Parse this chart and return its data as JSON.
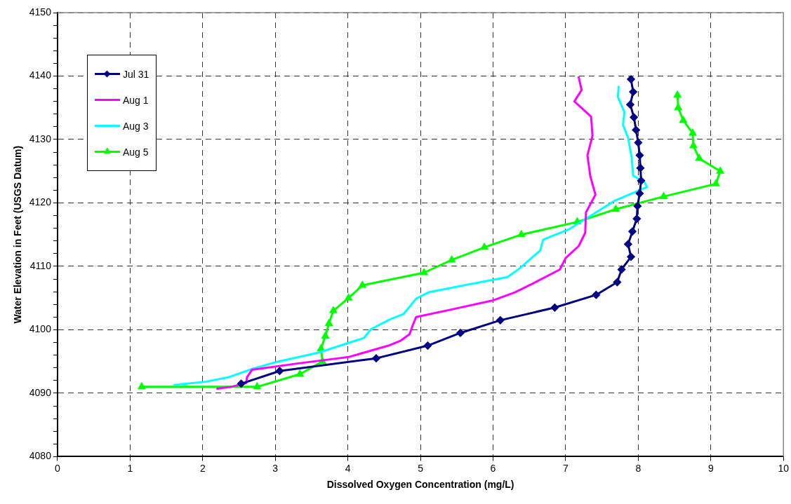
{
  "chart_data": {
    "type": "line",
    "xlabel": "Dissolved Oxygen Concentration (mg/L)",
    "ylabel": "Water Elevation in Feet (USGS Datum)",
    "xlim": [
      0,
      10
    ],
    "xticks": [
      0,
      1,
      2,
      3,
      4,
      5,
      6,
      7,
      8,
      9,
      10
    ],
    "ylim": [
      4080,
      4150
    ],
    "yticks": [
      4080,
      {
        "value": 4082,
        "label": null
      },
      {
        "value": 4084,
        "label": null
      },
      {
        "value": 4086,
        "label": null
      },
      {
        "value": 4088,
        "label": null
      },
      4090,
      {
        "value": 4092,
        "label": null
      },
      {
        "value": 4094,
        "label": null
      },
      {
        "value": 4096,
        "label": null
      },
      {
        "value": 4098,
        "label": null
      },
      4100,
      {
        "value": 4102,
        "label": null
      },
      {
        "value": 4104,
        "label": null
      },
      {
        "value": 4106,
        "label": null
      },
      {
        "value": 4108,
        "label": null
      },
      4110,
      {
        "value": 4112,
        "label": null
      },
      {
        "value": 4114,
        "label": null
      },
      {
        "value": 4116,
        "label": null
      },
      {
        "value": 4118,
        "label": null
      },
      4120,
      {
        "value": 4122,
        "label": null
      },
      {
        "value": 4124,
        "label": null
      },
      {
        "value": 4126,
        "label": null
      },
      {
        "value": 4128,
        "label": null
      },
      4130,
      {
        "value": 4132,
        "label": null
      },
      {
        "value": 4134,
        "label": null
      },
      {
        "value": 4136,
        "label": null
      },
      {
        "value": 4138,
        "label": null
      },
      4140,
      {
        "value": 4142,
        "label": null
      },
      {
        "value": 4144,
        "label": null
      },
      {
        "value": 4146,
        "label": null
      },
      {
        "value": 4148,
        "label": null
      },
      4150
    ],
    "grid": true,
    "legend": "top left",
    "line_style": "solid",
    "series": [
      {
        "name": "Jul 31",
        "color": "#000080",
        "marker": "diamond",
        "x": [
          2.53,
          3.06,
          4.39,
          5.1,
          5.55,
          6.1,
          6.85,
          7.42,
          7.71,
          7.77,
          7.9,
          7.86,
          7.92,
          7.98,
          7.99,
          8.02,
          8.04,
          8.03,
          8.02,
          8.0,
          7.97,
          7.94,
          7.89,
          7.93,
          7.9
        ],
        "values": [
          4091.5,
          4093.5,
          4095.5,
          4097.5,
          4099.5,
          4101.5,
          4103.5,
          4105.5,
          4107.5,
          4109.5,
          4111.5,
          4113.5,
          4115.5,
          4117.5,
          4119.5,
          4121.5,
          4123.5,
          4125.5,
          4127.5,
          4129.5,
          4131.5,
          4133.5,
          4135.5,
          4137.5,
          4139.5
        ]
      },
      {
        "name": "Aug 1",
        "color": "#ff00ff",
        "marker": "none",
        "x": [
          2.2,
          2.39,
          2.6,
          2.61,
          2.68,
          3.32,
          4.01,
          4.56,
          4.73,
          4.85,
          4.89,
          4.94,
          5.39,
          5.99,
          6.3,
          6.55,
          6.92,
          7.0,
          7.18,
          7.27,
          7.28,
          7.41,
          7.34,
          7.3,
          7.37,
          7.35,
          7.12,
          7.22,
          7.18
        ],
        "values": [
          4090.7,
          4091.0,
          4091.6,
          4092.5,
          4093.7,
          4094.7,
          4095.7,
          4097.5,
          4098.3,
          4099.3,
          4100.6,
          4102.0,
          4103.1,
          4104.6,
          4105.9,
          4107.3,
          4109.5,
          4111.3,
          4113.2,
          4115.3,
          4118.5,
          4121.3,
          4124.2,
          4127.5,
          4130.6,
          4133.6,
          4136.0,
          4137.8,
          4139.8
        ]
      },
      {
        "name": "Aug 3",
        "color": "#00ffff",
        "marker": "none",
        "x": [
          1.61,
          2.04,
          2.35,
          2.7,
          3.01,
          3.6,
          4.22,
          4.32,
          4.59,
          4.77,
          4.94,
          5.11,
          5.64,
          6.2,
          6.37,
          6.65,
          6.69,
          7.04,
          7.67,
          8.12,
          8.09,
          7.93,
          7.91,
          7.86,
          7.79,
          7.81,
          7.72,
          7.73
        ],
        "values": [
          4091.3,
          4091.8,
          4092.5,
          4093.9,
          4094.9,
          4096.4,
          4098.7,
          4100.1,
          4101.7,
          4102.5,
          4104.9,
          4105.9,
          4107.1,
          4108.3,
          4109.7,
          4112.5,
          4114.2,
          4115.8,
          4120.3,
          4122.5,
          4123.2,
          4124.3,
          4127.1,
          4130.3,
          4132.3,
          4134.3,
          4136.7,
          4138.3
        ]
      },
      {
        "name": "Aug 5",
        "color": "#00ff00",
        "marker": "triangle",
        "x": [
          1.16,
          2.75,
          3.34,
          3.65,
          3.63,
          3.69,
          3.74,
          3.8,
          4.01,
          4.2,
          5.05,
          5.43,
          5.88,
          6.39,
          7.16,
          7.69,
          8.35,
          9.07,
          9.13,
          8.84,
          8.76,
          8.75,
          8.62,
          8.55,
          8.54
        ],
        "values": [
          4091,
          4091,
          4093,
          4095,
          4097,
          4099,
          4101,
          4103,
          4105,
          4107,
          4109,
          4111,
          4113,
          4115,
          4117,
          4119,
          4121,
          4123,
          4125,
          4127,
          4129,
          4131,
          4133,
          4135,
          4137
        ]
      }
    ]
  }
}
